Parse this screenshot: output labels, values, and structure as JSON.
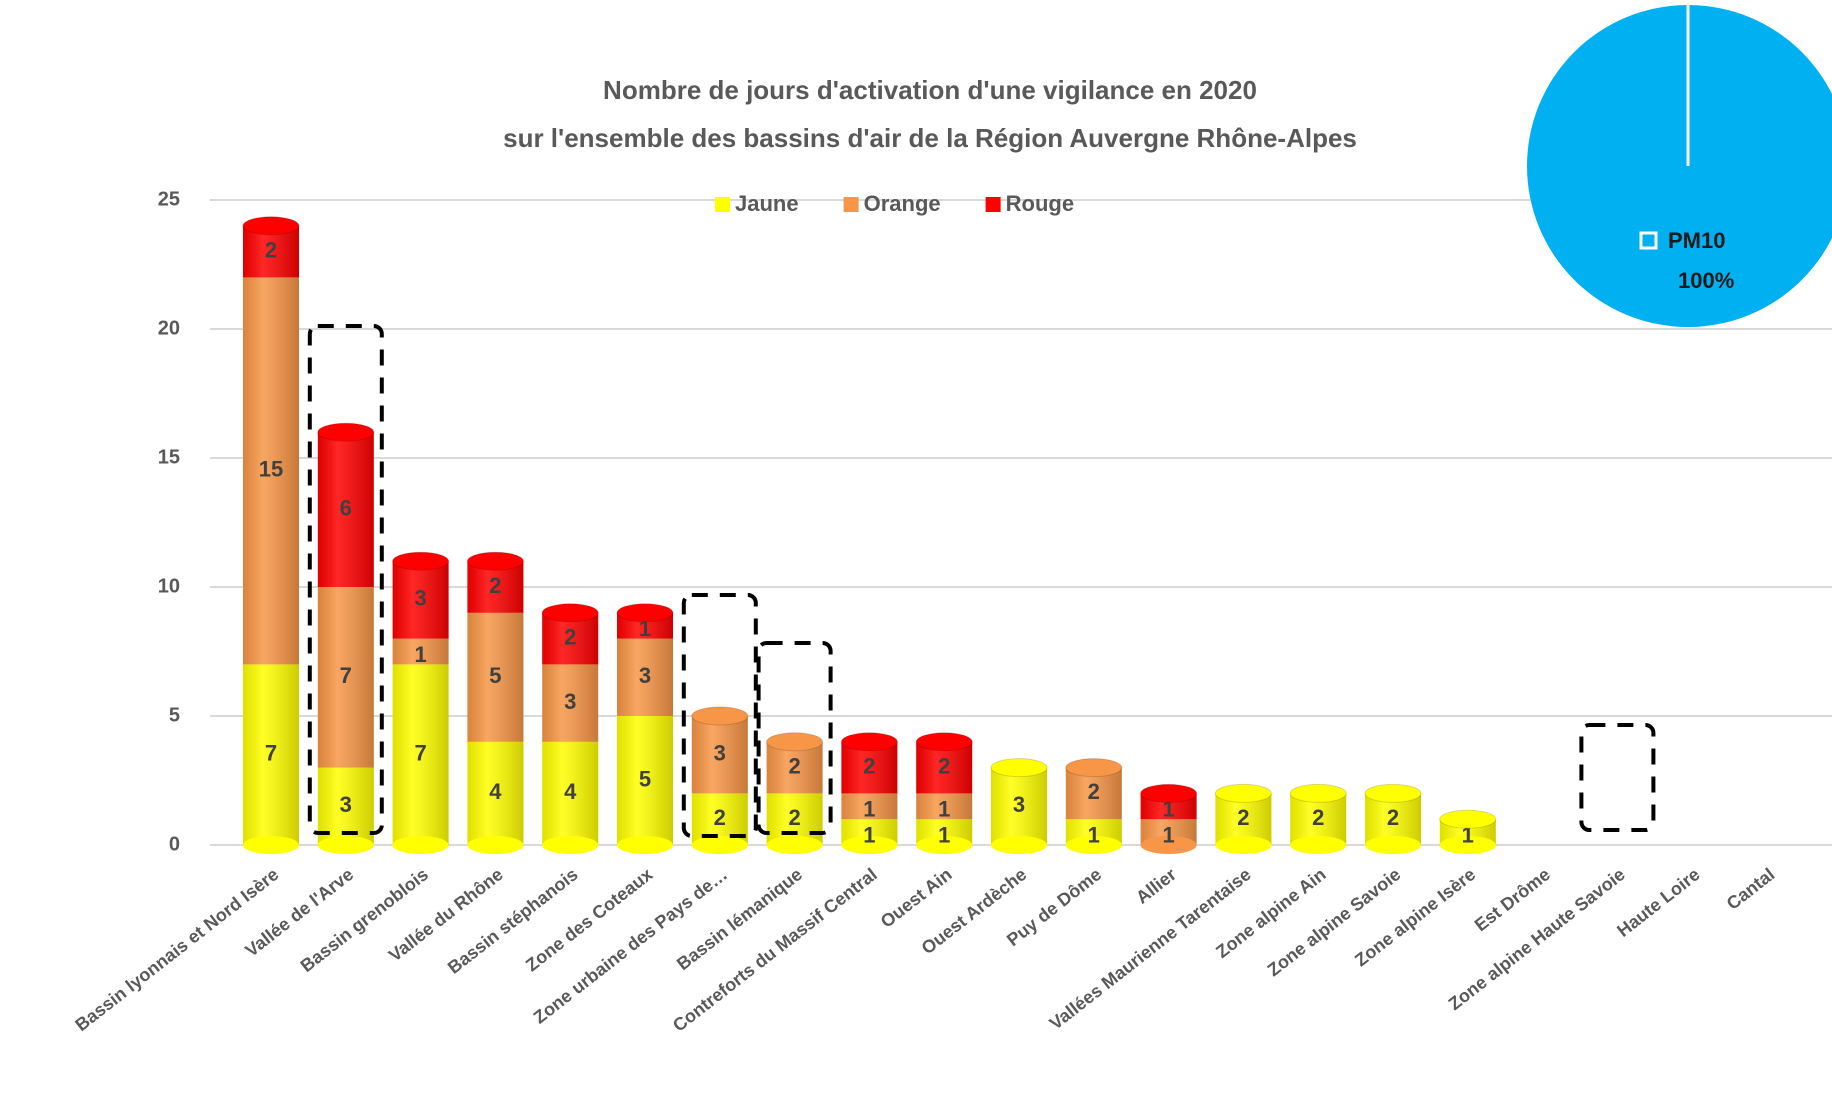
{
  "chart_data": [
    {
      "type": "bar",
      "title": [
        "Nombre de jours d'activation d'une vigilance en 2020",
        "sur l'ensemble des bassins d'air de la Région Auvergne Rhône-Alpes"
      ],
      "stacked": true,
      "legend": "top",
      "categories": [
        "Bassin lyonnais et Nord Isère",
        "Vallée de l'Arve",
        "Bassin grenoblois",
        "Vallée du Rhône",
        "Bassin stéphanois",
        "Zone des Coteaux",
        "Zone urbaine des Pays de…",
        "Bassin lémanique",
        "Contreforts du Massif Central",
        "Ouest Ain",
        "Ouest Ardèche",
        "Puy de Dôme",
        "Allier",
        "Vallées Maurienne Tarentaise",
        "Zone alpine Ain",
        "Zone alpine Savoie",
        "Zone alpine Isère",
        "Est Drôme",
        "Zone alpine Haute Savoie",
        "Haute Loire",
        "Cantal"
      ],
      "series": [
        {
          "name": "Jaune",
          "color": "#ffff00",
          "values": [
            7,
            3,
            7,
            4,
            4,
            5,
            2,
            2,
            1,
            1,
            3,
            1,
            null,
            2,
            2,
            2,
            1,
            null,
            null,
            null,
            null
          ]
        },
        {
          "name": "Orange",
          "color": "#f79646",
          "values": [
            15,
            7,
            1,
            5,
            3,
            3,
            3,
            2,
            1,
            1,
            null,
            2,
            1,
            null,
            null,
            null,
            null,
            null,
            null,
            null,
            null
          ]
        },
        {
          "name": "Rouge",
          "color": "#ff0000",
          "values": [
            2,
            6,
            3,
            2,
            2,
            1,
            null,
            null,
            2,
            2,
            null,
            null,
            1,
            null,
            null,
            null,
            null,
            null,
            null,
            null,
            null
          ]
        }
      ],
      "ylim": [
        0,
        25
      ],
      "yticks": [
        0,
        5,
        10,
        15,
        20,
        25
      ],
      "grid": true
    },
    {
      "type": "pie",
      "categories": [
        "PM10"
      ],
      "values": [
        100
      ],
      "value_labels": [
        "100%"
      ],
      "colors": [
        "#00b0f0"
      ]
    }
  ]
}
